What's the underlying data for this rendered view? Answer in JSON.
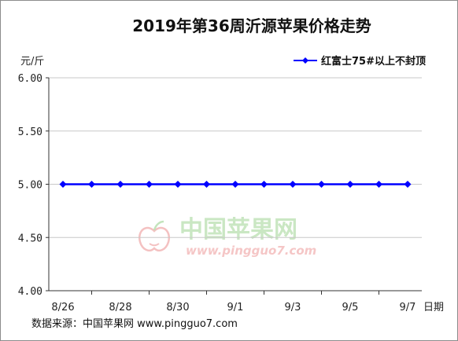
{
  "chart_data": {
    "type": "line",
    "title": "2019年第36周沂源苹果价格走势",
    "ylabel": "元/斤",
    "xlabel": "日期",
    "ylim": [
      4.0,
      6.0
    ],
    "yticks": [
      "6.00",
      "5.50",
      "5.00",
      "4.50",
      "4.00"
    ],
    "ytick_values": [
      6.0,
      5.5,
      5.0,
      4.5,
      4.0
    ],
    "categories": [
      "8/26",
      "8/27",
      "8/28",
      "8/29",
      "8/30",
      "8/31",
      "9/1",
      "9/2",
      "9/3",
      "9/4",
      "9/5",
      "9/6",
      "9/7"
    ],
    "x_tick_labels": [
      "8/26",
      "",
      "8/28",
      "",
      "8/30",
      "",
      "9/1",
      "",
      "9/3",
      "",
      "9/5",
      "",
      "9/7"
    ],
    "series": [
      {
        "name": "红富士75#以上不封顶",
        "values": [
          5.0,
          5.0,
          5.0,
          5.0,
          5.0,
          5.0,
          5.0,
          5.0,
          5.0,
          5.0,
          5.0,
          5.0,
          5.0
        ],
        "color": "#0000ff"
      }
    ],
    "legend_position": "top-right",
    "grid": "horizontal",
    "source": "数据来源：中国苹果网 www.pingguo7.com"
  },
  "watermark": {
    "name": "中国苹果网",
    "url": "www.pingguo7.com"
  },
  "colors": {
    "line": "#0000ff",
    "grid": "#c8c8c8",
    "axis": "#333333"
  }
}
